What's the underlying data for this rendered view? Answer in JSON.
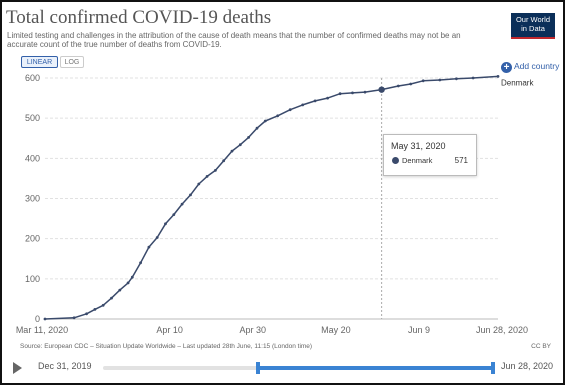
{
  "header": {
    "title": "Total confirmed COVID-19 deaths",
    "subtitle": "Limited testing and challenges in the attribution of the cause of death means that the number of confirmed deaths may not be an accurate count of the true number of deaths from COVID-19.",
    "logo_line1": "Our World",
    "logo_line2": "in Data"
  },
  "controls": {
    "linear_label": "LINEAR",
    "log_label": "LOG",
    "add_country_label": "Add country",
    "add_icon": "plus-circle-icon",
    "scale_selected": "linear"
  },
  "tooltip": {
    "date": "May 31, 2020",
    "series": "Denmark",
    "value": "571"
  },
  "footer": {
    "source": "Source: European CDC – Situation Update Worldwide – Last updated 28th June, 11:15 (London time)",
    "license": "CC BY"
  },
  "timeline": {
    "start_label": "Dec 31, 2019",
    "end_label": "Jun 28, 2020",
    "play_icon": "play-icon",
    "selected_start": "Mar 11, 2020",
    "selected_end": "Jun 28, 2020",
    "range_start_fraction": 0.395,
    "range_end_fraction": 0.995
  },
  "colors": {
    "series": "#3a4a6b",
    "accent": "#3360a9",
    "logo_bg": "#0b2f59",
    "logo_stripe": "#c0282d",
    "slider": "#3a83d3"
  },
  "chart_data": {
    "type": "line",
    "title": "Total confirmed COVID-19 deaths",
    "x_ticks": [
      "Mar 11, 2020",
      "Apr 10",
      "Apr 30",
      "May 20",
      "Jun 9",
      "Jun 28, 2020"
    ],
    "x_tick_days": [
      0,
      30,
      50,
      70,
      90,
      109
    ],
    "y_ticks": [
      0,
      100,
      200,
      300,
      400,
      500,
      600
    ],
    "xlim": [
      "2020-03-11",
      "2020-06-28"
    ],
    "ylim": [
      0,
      600
    ],
    "grid": "horizontal",
    "highlight": {
      "date": "2020-05-31",
      "value": 571
    },
    "series": [
      {
        "name": "Denmark",
        "x": [
          "2020-03-11",
          "2020-03-18",
          "2020-03-21",
          "2020-03-23",
          "2020-03-25",
          "2020-03-27",
          "2020-03-29",
          "2020-03-31",
          "2020-04-01",
          "2020-04-03",
          "2020-04-05",
          "2020-04-07",
          "2020-04-09",
          "2020-04-11",
          "2020-04-13",
          "2020-04-15",
          "2020-04-17",
          "2020-04-19",
          "2020-04-21",
          "2020-04-23",
          "2020-04-25",
          "2020-04-27",
          "2020-04-29",
          "2020-05-01",
          "2020-05-03",
          "2020-05-06",
          "2020-05-09",
          "2020-05-12",
          "2020-05-15",
          "2020-05-18",
          "2020-05-21",
          "2020-05-24",
          "2020-05-27",
          "2020-05-31",
          "2020-06-04",
          "2020-06-07",
          "2020-06-10",
          "2020-06-14",
          "2020-06-18",
          "2020-06-22",
          "2020-06-28"
        ],
        "values": [
          0,
          3,
          13,
          24,
          34,
          52,
          72,
          90,
          104,
          140,
          179,
          203,
          237,
          260,
          286,
          309,
          336,
          355,
          370,
          394,
          418,
          434,
          452,
          475,
          493,
          506,
          521,
          533,
          543,
          550,
          561,
          563,
          565,
          571,
          580,
          585,
          593,
          595,
          598,
          600,
          604
        ]
      }
    ]
  }
}
